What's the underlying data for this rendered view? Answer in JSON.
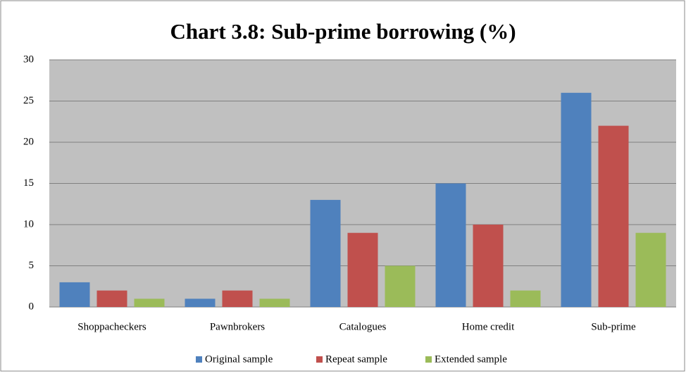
{
  "chart_data": {
    "type": "bar",
    "title": "Chart 3.8: Sub-prime borrowing (%)",
    "categories": [
      "Shoppacheckers",
      "Pawnbrokers",
      "Catalogues",
      "Home credit",
      "Sub-prime"
    ],
    "series": [
      {
        "name": "Original sample",
        "color": "#4f81bd",
        "values": [
          3,
          1,
          13,
          15,
          26
        ]
      },
      {
        "name": "Repeat sample",
        "color": "#c0504d",
        "values": [
          2,
          2,
          9,
          10,
          22
        ]
      },
      {
        "name": "Extended sample",
        "color": "#9bbb59",
        "values": [
          1,
          1,
          5,
          2,
          9
        ]
      }
    ],
    "ylim": [
      0,
      30
    ],
    "yticks": [
      0,
      5,
      10,
      15,
      20,
      25,
      30
    ],
    "grid": true,
    "legend": "bottom"
  }
}
